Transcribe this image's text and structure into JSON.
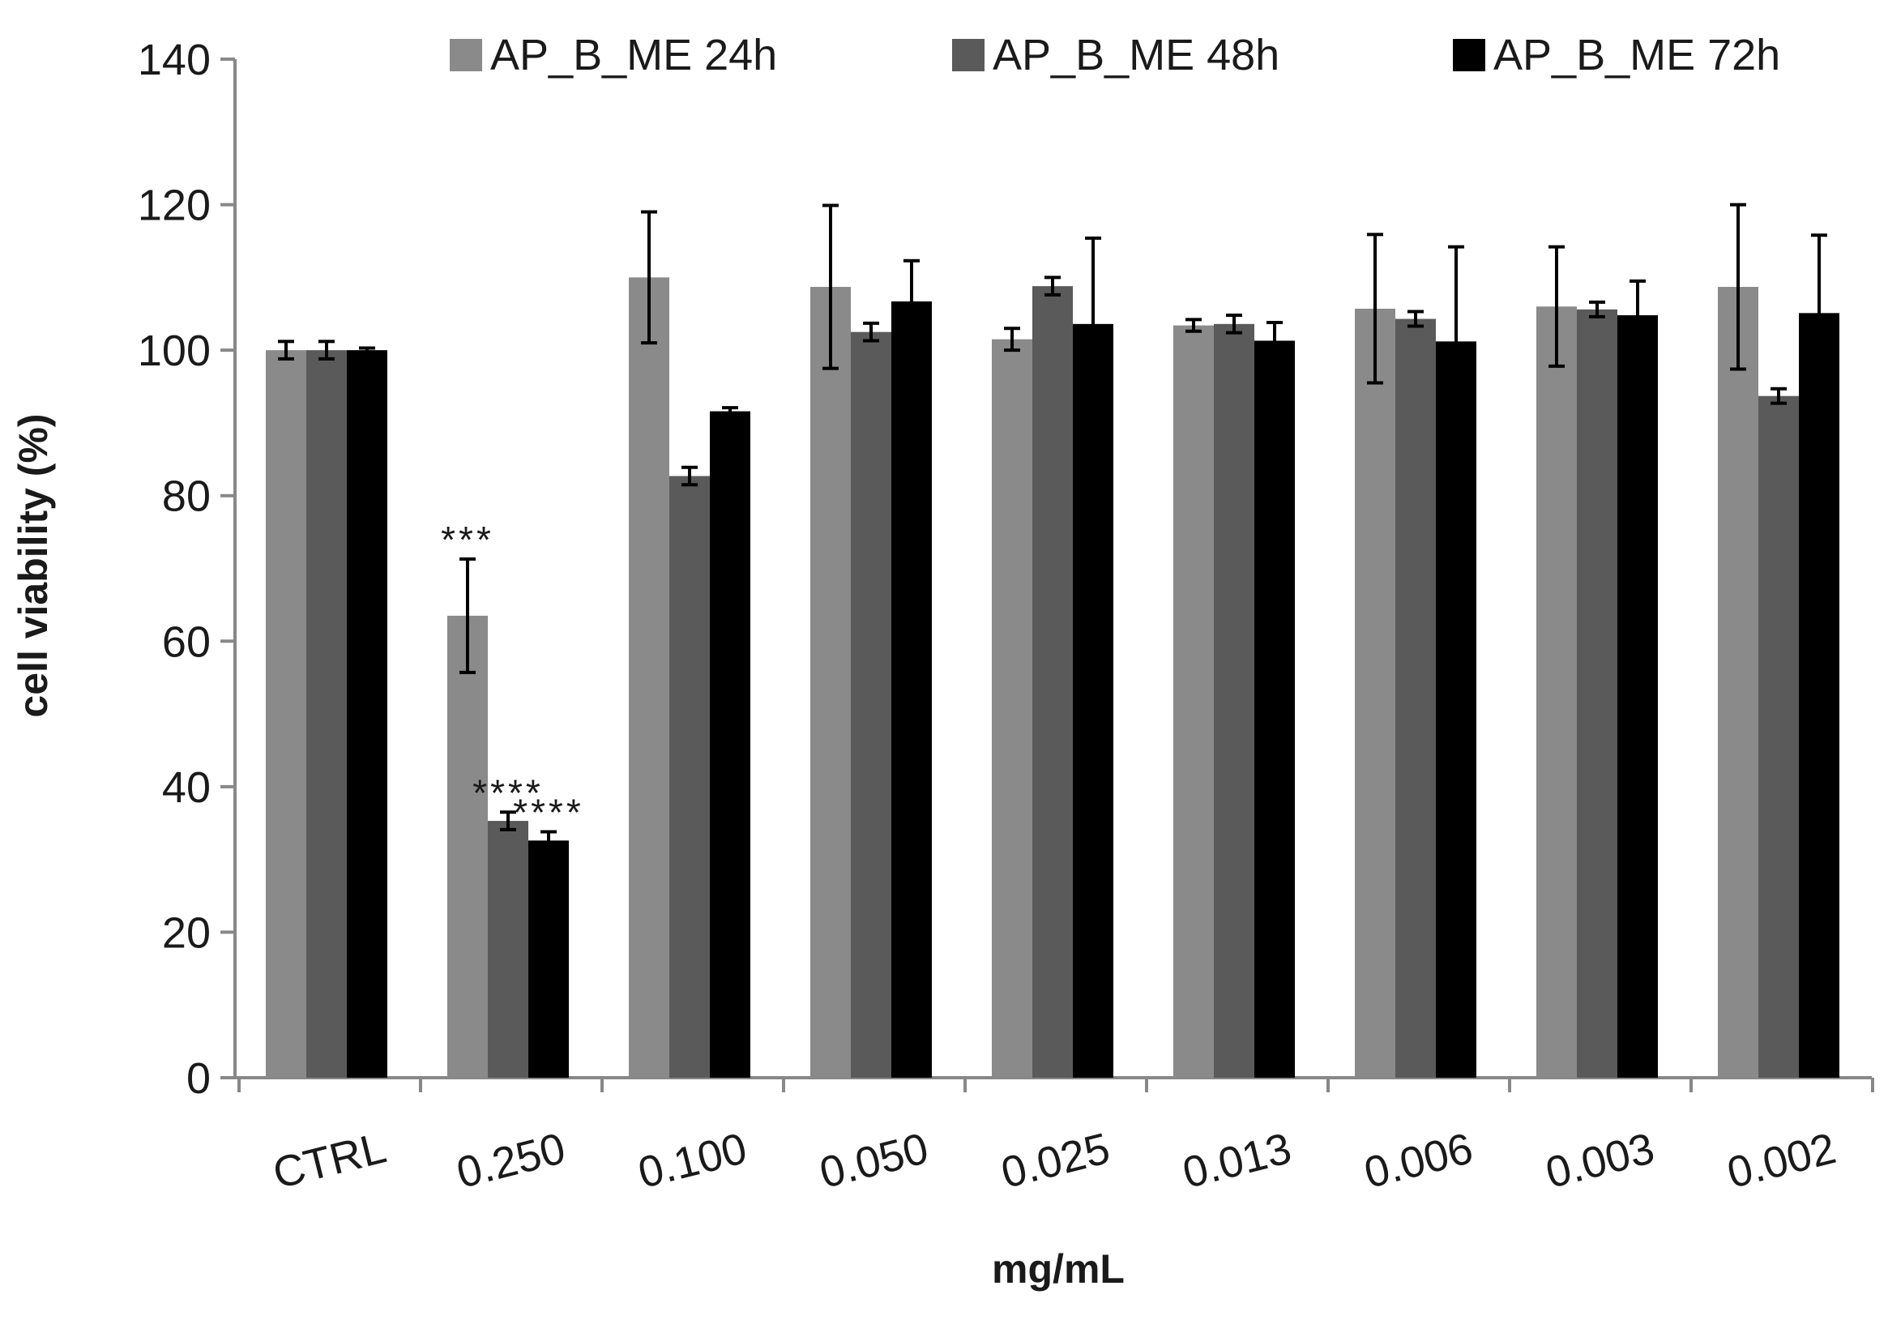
{
  "chart_data": {
    "type": "bar",
    "title": "",
    "xlabel": "mg/mL",
    "ylabel": "cell viability (%)",
    "ylim": [
      0,
      140
    ],
    "yticks": [
      0,
      20,
      40,
      60,
      80,
      100,
      120,
      140
    ],
    "ytick_labels": [
      "0",
      "20",
      "40",
      "60",
      "80",
      "100",
      "120",
      "140"
    ],
    "grid": false,
    "legend_position": "top",
    "categories": [
      "CTRL",
      "0.250",
      "0.100",
      "0.050",
      "0.025",
      "0.013",
      "0.006",
      "0.003",
      "0.002"
    ],
    "series": [
      {
        "name": "AP_B_ME 24h",
        "color": "#8a8a8a",
        "values": [
          100,
          63.5,
          110,
          108.7,
          101.5,
          103.4,
          105.7,
          106,
          108.7
        ],
        "errors": [
          1.2,
          7.8,
          9,
          11.2,
          1.5,
          0.8,
          10.2,
          8.2,
          11.3
        ]
      },
      {
        "name": "AP_B_ME 48h",
        "color": "#5a5a5a",
        "values": [
          100,
          35.3,
          82.7,
          102.5,
          108.8,
          103.6,
          104.3,
          105.6,
          93.7
        ],
        "errors": [
          1.2,
          1.2,
          1.2,
          1.2,
          1.2,
          1.2,
          1.0,
          1.0,
          1.0
        ]
      },
      {
        "name": "AP_B_ME 72h",
        "color": "#000000",
        "values": [
          100,
          32.6,
          91.6,
          106.7,
          103.6,
          101.3,
          101.2,
          104.8,
          105.1
        ],
        "errors": [
          0.3,
          1.2,
          0.5,
          5.6,
          11.8,
          2.5,
          13,
          4.7,
          10.7
        ]
      }
    ],
    "annotations": [
      {
        "text": "***",
        "category": "0.250",
        "series": "AP_B_ME 24h"
      },
      {
        "text": "****",
        "category": "0.250",
        "series": "AP_B_ME 48h"
      },
      {
        "text": "****",
        "category": "0.250",
        "series": "AP_B_ME 72h"
      }
    ]
  }
}
